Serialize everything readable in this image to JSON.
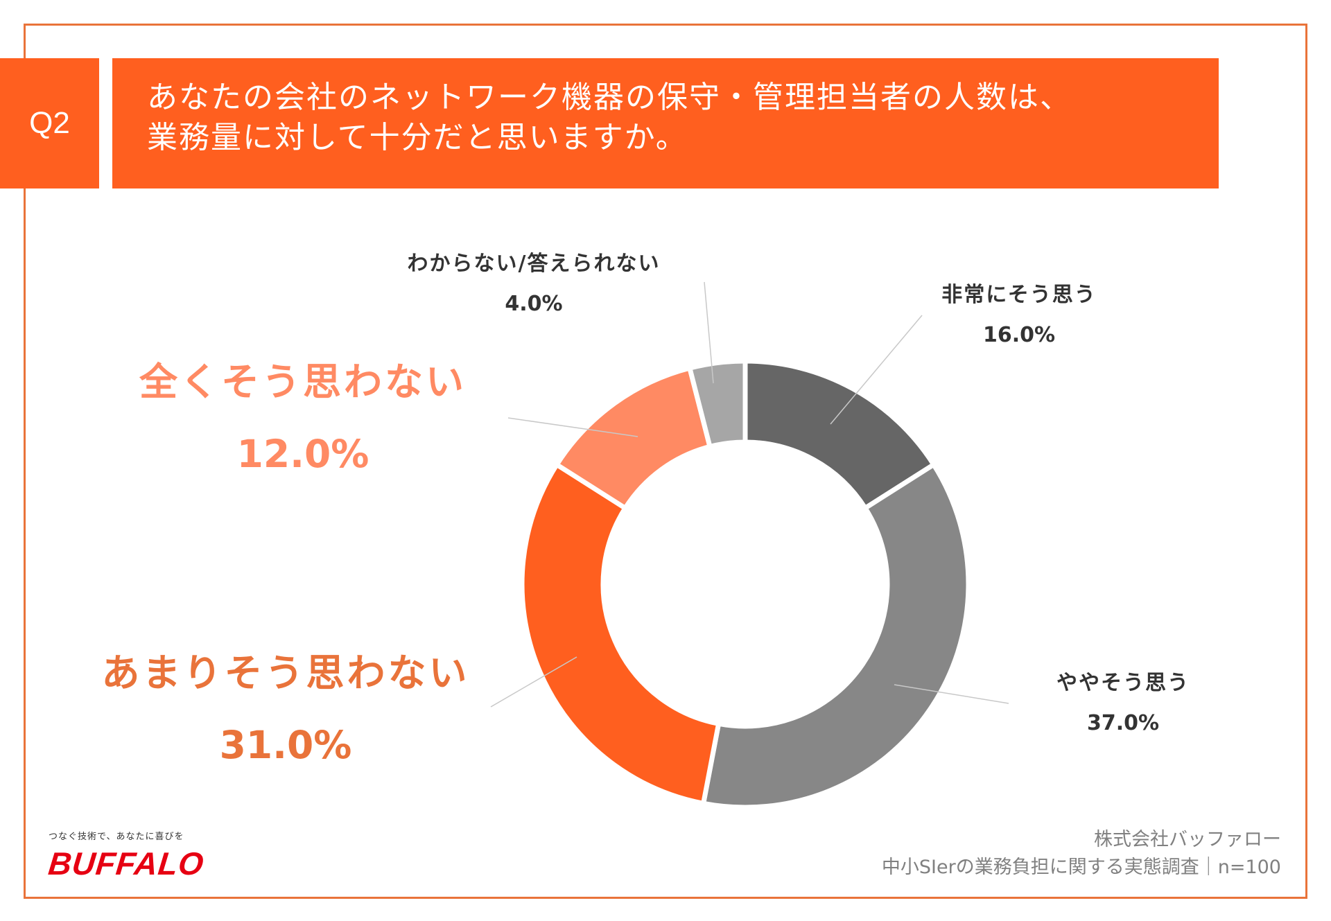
{
  "question": {
    "number": "Q2",
    "line1": "あなたの会社のネットワーク機器の保守・管理担当者の人数は、",
    "line2": "業務量に対して十分だと思いますか。"
  },
  "chart_data": {
    "type": "pie",
    "subtype": "donut",
    "slices": [
      {
        "label": "非常にそう思う",
        "value": 16.0,
        "value_label": "16.0%",
        "color": "#666666"
      },
      {
        "label": "ややそう思う",
        "value": 37.0,
        "value_label": "37.0%",
        "color": "#878787"
      },
      {
        "label": "あまりそう思わない",
        "value": 31.0,
        "value_label": "31.0%",
        "color": "#FF5F1F"
      },
      {
        "label": "全くそう思わない",
        "value": 12.0,
        "value_label": "12.0%",
        "color": "#FF8A63"
      },
      {
        "label": "わからない/答えられない",
        "value": 4.0,
        "value_label": "4.0%",
        "color": "#A6A6A6"
      }
    ]
  },
  "footer": {
    "tagline": "つなぐ技術で、あなたに喜びを",
    "brand": "BUFFALO",
    "company": "株式会社バッファロー",
    "survey": "中小SIerの業務負担に関する実態調査｜n=100"
  },
  "colors": {
    "accent": "#FF5F1F",
    "frame": "#E9733A",
    "brand_red": "#E60012"
  }
}
